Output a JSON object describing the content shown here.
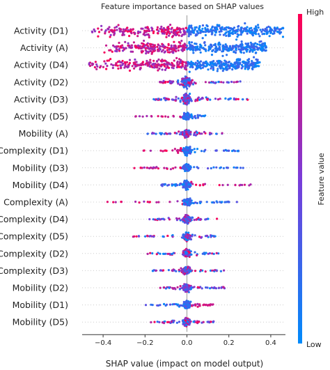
{
  "chart_data": {
    "type": "scatter",
    "subtype": "shap-beeswarm",
    "title": "Feature importance based on SHAP values",
    "xlabel": "SHAP value (impact on model output)",
    "xlim": [
      -0.5,
      0.47
    ],
    "xticks": [
      -0.4,
      -0.2,
      0.0,
      0.2,
      0.4
    ],
    "xtick_labels": [
      "−0.4",
      "−0.2",
      "0.0",
      "0.2",
      "0.4"
    ],
    "colorbar": {
      "label": "Feature value",
      "high": "High",
      "low": "Low",
      "high_color": "#ff0052",
      "low_color": "#008bfb"
    },
    "features": [
      {
        "name": "Activity (D1)",
        "min": -0.46,
        "max": 0.46,
        "red_side": "negative",
        "spread": "wide"
      },
      {
        "name": "Activity (A)",
        "min": -0.41,
        "max": 0.38,
        "red_side": "negative",
        "spread": "wide"
      },
      {
        "name": "Activity (D4)",
        "min": -0.47,
        "max": 0.35,
        "red_side": "negative",
        "spread": "wide"
      },
      {
        "name": "Activity (D2)",
        "min": -0.13,
        "max": 0.27,
        "red_side": "center",
        "spread": "medium"
      },
      {
        "name": "Activity (D3)",
        "min": -0.16,
        "max": 0.29,
        "red_side": "center",
        "spread": "medium"
      },
      {
        "name": "Activity (D5)",
        "min": -0.28,
        "max": 0.09,
        "red_side": "negative",
        "spread": "small"
      },
      {
        "name": "Mobility (A)",
        "min": -0.19,
        "max": 0.18,
        "red_side": "mixed",
        "spread": "small"
      },
      {
        "name": "Complexity (D1)",
        "min": -0.21,
        "max": 0.25,
        "red_side": "negative",
        "spread": "small"
      },
      {
        "name": "Mobility (D3)",
        "min": -0.26,
        "max": 0.31,
        "red_side": "negative",
        "spread": "small"
      },
      {
        "name": "Mobility (D4)",
        "min": -0.13,
        "max": 0.31,
        "red_side": "positive",
        "spread": "small"
      },
      {
        "name": "Complexity (A)",
        "min": -0.38,
        "max": 0.24,
        "red_side": "negative",
        "spread": "small"
      },
      {
        "name": "Complexity (D4)",
        "min": -0.18,
        "max": 0.15,
        "red_side": "mixed",
        "spread": "small"
      },
      {
        "name": "Complexity (D5)",
        "min": -0.26,
        "max": 0.14,
        "red_side": "mixed",
        "spread": "small"
      },
      {
        "name": "Complexity (D2)",
        "min": -0.19,
        "max": 0.16,
        "red_side": "mixed",
        "spread": "small"
      },
      {
        "name": "Complexity (D3)",
        "min": -0.17,
        "max": 0.18,
        "red_side": "mixed",
        "spread": "small"
      },
      {
        "name": "Mobility (D2)",
        "min": -0.13,
        "max": 0.21,
        "red_side": "mixed",
        "spread": "small"
      },
      {
        "name": "Mobility (D1)",
        "min": -0.2,
        "max": 0.13,
        "red_side": "positive",
        "spread": "small"
      },
      {
        "name": "Mobility (D5)",
        "min": -0.2,
        "max": 0.13,
        "red_side": "mixed",
        "spread": "small"
      }
    ]
  }
}
